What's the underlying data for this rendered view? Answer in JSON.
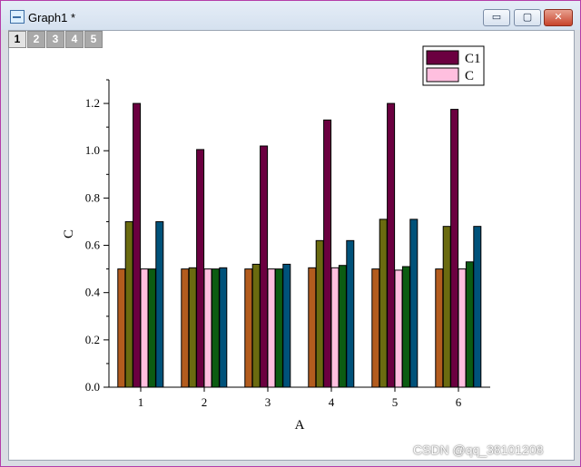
{
  "window": {
    "title": "Graph1 *"
  },
  "controls": {
    "minimize": "▭",
    "maximize": "▢",
    "close": "✕"
  },
  "layer_tabs": [
    "1",
    "2",
    "3",
    "4",
    "5"
  ],
  "watermark": "CSDN @qq_38101208",
  "colors": {
    "s1": "#b35c1e",
    "s2": "#6b6b10",
    "s3": "#6b0040",
    "s4": "#ffbfdf",
    "s5": "#0c5c12",
    "s6": "#00527a",
    "legend_c1": "#6b0040",
    "legend_c": "#ffbfdf"
  },
  "chart_data": {
    "type": "bar",
    "xlabel": "A",
    "ylabel": "C",
    "categories": [
      "1",
      "2",
      "3",
      "4",
      "5",
      "6"
    ],
    "ylim": [
      0,
      1.3
    ],
    "yticks": [
      "0.0",
      "0.2",
      "0.4",
      "0.6",
      "0.8",
      "1.0",
      "1.2"
    ],
    "legend": [
      {
        "name": "C1"
      },
      {
        "name": "C"
      }
    ],
    "legend_position": "top-right",
    "series": [
      {
        "values": [
          0.5,
          0.5,
          0.5,
          0.505,
          0.5,
          0.5
        ]
      },
      {
        "values": [
          0.7,
          0.505,
          0.52,
          0.62,
          0.71,
          0.68
        ]
      },
      {
        "name": "C1",
        "values": [
          1.2,
          1.005,
          1.02,
          1.13,
          1.2,
          1.175
        ]
      },
      {
        "name": "C",
        "values": [
          0.5,
          0.5,
          0.5,
          0.505,
          0.495,
          0.5
        ]
      },
      {
        "values": [
          0.5,
          0.5,
          0.5,
          0.515,
          0.51,
          0.53
        ]
      },
      {
        "values": [
          0.7,
          0.505,
          0.52,
          0.62,
          0.71,
          0.68
        ]
      }
    ]
  }
}
